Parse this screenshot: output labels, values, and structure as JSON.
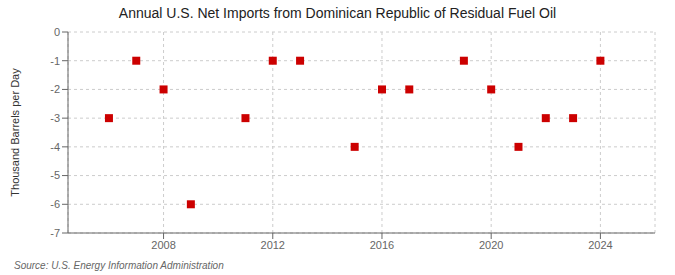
{
  "chart_data": {
    "type": "scatter",
    "title": "Annual U.S. Net Imports from Dominican Republic of Residual Fuel Oil",
    "y_label": "Thousand Barrels per Day",
    "annotation": "Source: U.S. Energy Information Administration",
    "x": [
      2006,
      2007,
      2008,
      2009,
      2011,
      2012,
      2013,
      2015,
      2016,
      2017,
      2019,
      2020,
      2021,
      2022,
      2023,
      2024
    ],
    "values": [
      -3,
      -1,
      -2,
      -6,
      -3,
      -1,
      -1,
      -4,
      -2,
      -2,
      -1,
      -2,
      -4,
      -3,
      -3,
      -1
    ],
    "color": "#cc0000",
    "marker": "square",
    "xlim": [
      2004.5,
      2026
    ],
    "ylim": [
      -7,
      0
    ],
    "xticks": [
      2008,
      2012,
      2016,
      2020,
      2024
    ],
    "yticks": [
      0,
      -1,
      -2,
      -3,
      -4,
      -5,
      -6,
      -7
    ],
    "grid": true
  }
}
